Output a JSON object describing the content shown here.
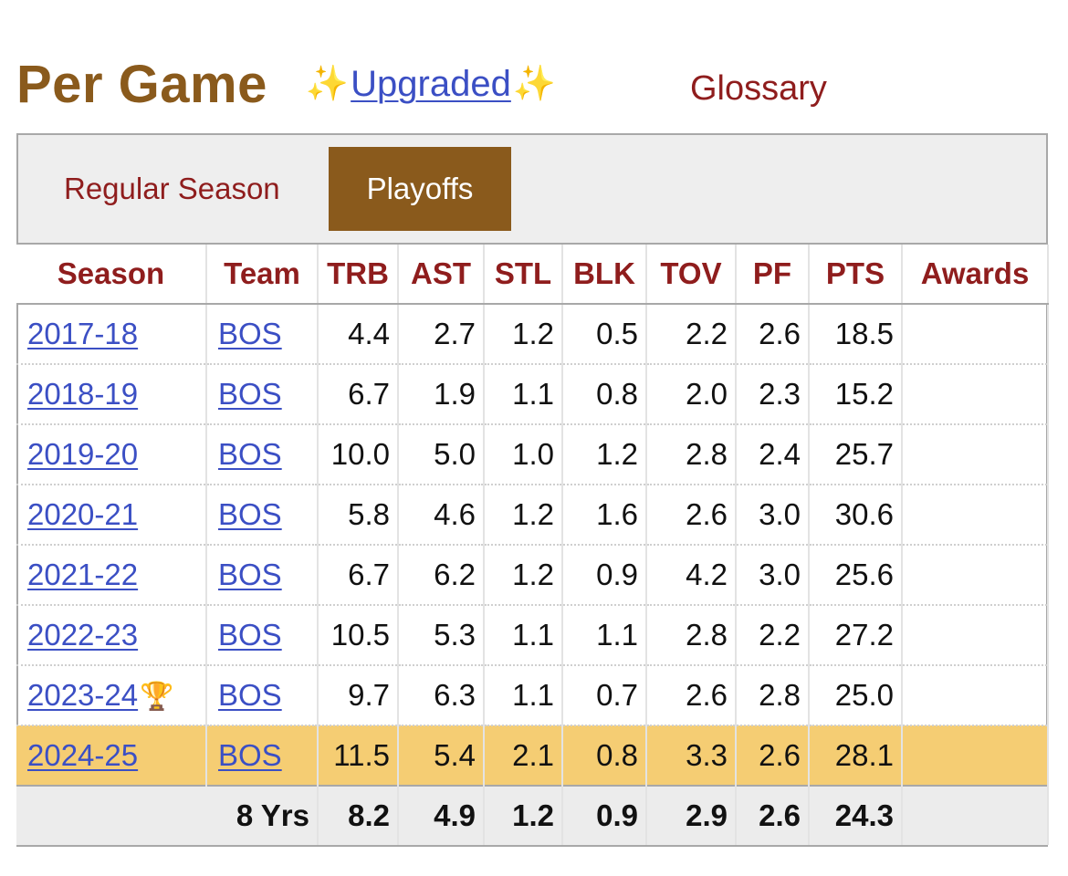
{
  "header": {
    "title": "Per Game",
    "sparkle_left": "✨",
    "upgraded_link": "Upgraded",
    "sparkle_right": "✨",
    "glossary_link": "Glossary"
  },
  "tabs": [
    {
      "label": "Regular Season",
      "active": false
    },
    {
      "label": "Playoffs",
      "active": true
    }
  ],
  "table": {
    "columns": [
      "Season",
      "Team",
      "TRB",
      "AST",
      "STL",
      "BLK",
      "TOV",
      "PF",
      "PTS",
      "Awards"
    ],
    "rows": [
      {
        "season": "2017-18",
        "team": "BOS",
        "trb": "4.4",
        "ast": "2.7",
        "stl": "1.2",
        "blk": "0.5",
        "tov": "2.2",
        "pf": "2.6",
        "pts": "18.5",
        "awards": "",
        "champion": false
      },
      {
        "season": "2018-19",
        "team": "BOS",
        "trb": "6.7",
        "ast": "1.9",
        "stl": "1.1",
        "blk": "0.8",
        "tov": "2.0",
        "pf": "2.3",
        "pts": "15.2",
        "awards": "",
        "champion": false
      },
      {
        "season": "2019-20",
        "team": "BOS",
        "trb": "10.0",
        "ast": "5.0",
        "stl": "1.0",
        "blk": "1.2",
        "tov": "2.8",
        "pf": "2.4",
        "pts": "25.7",
        "awards": "",
        "champion": false
      },
      {
        "season": "2020-21",
        "team": "BOS",
        "trb": "5.8",
        "ast": "4.6",
        "stl": "1.2",
        "blk": "1.6",
        "tov": "2.6",
        "pf": "3.0",
        "pts": "30.6",
        "awards": "",
        "champion": false
      },
      {
        "season": "2021-22",
        "team": "BOS",
        "trb": "6.7",
        "ast": "6.2",
        "stl": "1.2",
        "blk": "0.9",
        "tov": "4.2",
        "pf": "3.0",
        "pts": "25.6",
        "awards": "",
        "champion": false
      },
      {
        "season": "2022-23",
        "team": "BOS",
        "trb": "10.5",
        "ast": "5.3",
        "stl": "1.1",
        "blk": "1.1",
        "tov": "2.8",
        "pf": "2.2",
        "pts": "27.2",
        "awards": "",
        "champion": false
      },
      {
        "season": "2023-24",
        "team": "BOS",
        "trb": "9.7",
        "ast": "6.3",
        "stl": "1.1",
        "blk": "0.7",
        "tov": "2.6",
        "pf": "2.8",
        "pts": "25.0",
        "awards": "",
        "champion": true
      },
      {
        "season": "2024-25",
        "team": "BOS",
        "trb": "11.5",
        "ast": "5.4",
        "stl": "2.1",
        "blk": "0.8",
        "tov": "3.3",
        "pf": "2.6",
        "pts": "28.1",
        "awards": "",
        "champion": false,
        "highlight": true
      }
    ],
    "total": {
      "label": "8 Yrs",
      "trb": "8.2",
      "ast": "4.9",
      "stl": "1.2",
      "blk": "0.9",
      "tov": "2.9",
      "pf": "2.6",
      "pts": "24.3",
      "awards": ""
    },
    "trophy_icon": "🏆"
  },
  "colors": {
    "title": "#8a5a1c",
    "accent_red": "#8f1d1d",
    "link_blue": "#3b4fc4",
    "active_tab": "#8a5a1c",
    "highlight_row": "#f5cd73"
  }
}
